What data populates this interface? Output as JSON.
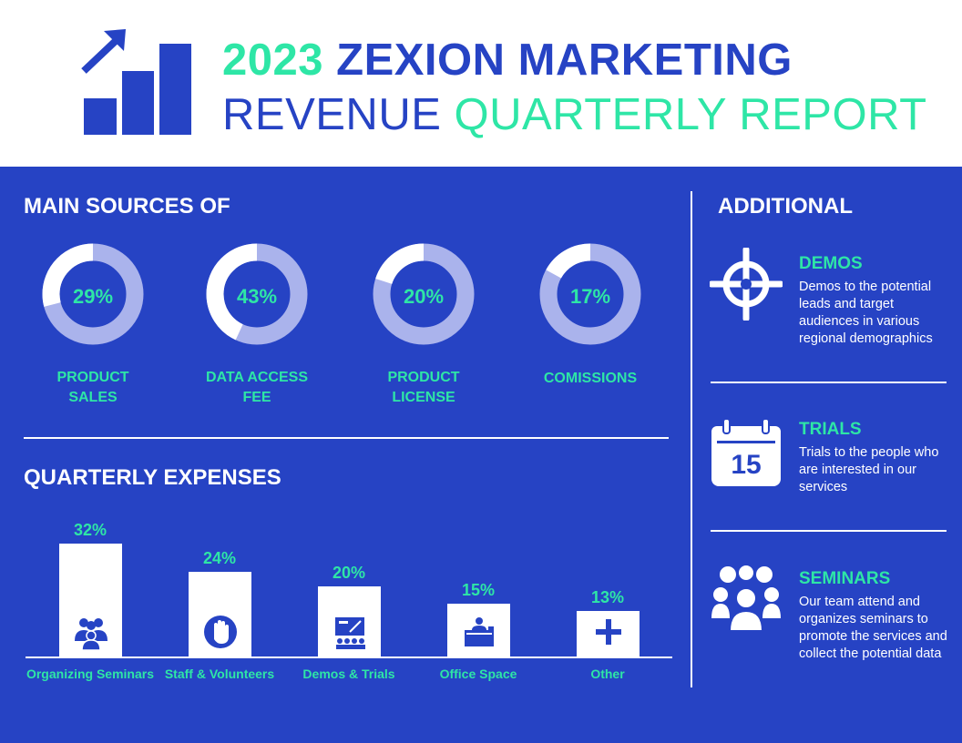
{
  "header": {
    "title_year": "2023",
    "title_company": "ZEXION MARKETING",
    "title_revenue": "REVENUE",
    "title_report": "QUARTERLY REPORT",
    "logo_icon": "bar-chart-growth-icon"
  },
  "colors": {
    "background": "#2643c4",
    "accent": "#2ee6a6",
    "donut_ring": "#aab3ec",
    "white": "#ffffff"
  },
  "sources": {
    "title": "MAIN SOURCES OF",
    "items": [
      {
        "percent_label": "29%",
        "label_line1": "PRODUCT",
        "label_line2": "SALES"
      },
      {
        "percent_label": "43%",
        "label_line1": "DATA ACCESS",
        "label_line2": "FEE"
      },
      {
        "percent_label": "20%",
        "label_line1": "PRODUCT",
        "label_line2": "LICENSE"
      },
      {
        "percent_label": "17%",
        "label_line1": "COMISSIONS",
        "label_line2": ""
      }
    ]
  },
  "expenses": {
    "title": "QUARTERLY EXPENSES",
    "items": [
      {
        "value_label": "32%",
        "category": "Organizing Seminars",
        "icon": "people-group-icon"
      },
      {
        "value_label": "24%",
        "category": "Staff & Volunteers",
        "icon": "raised-hand-icon"
      },
      {
        "value_label": "20%",
        "category": "Demos & Trials",
        "icon": "presentation-icon"
      },
      {
        "value_label": "15%",
        "category": "Office Space",
        "icon": "office-desk-icon"
      },
      {
        "value_label": "13%",
        "category": "Other",
        "icon": "plus-icon"
      }
    ]
  },
  "additional": {
    "title": "ADDITIONAL",
    "items": [
      {
        "title": "DEMOS",
        "text": "Demos to the potential leads and target audiences in various regional demographics",
        "icon": "target-crosshair-icon"
      },
      {
        "title": "TRIALS",
        "text": "Trials to the people who are interested in our services",
        "icon": "calendar-icon",
        "icon_number": "15"
      },
      {
        "title": "SEMINARS",
        "text": "Our team attend and organizes seminars to promote the services and collect the potential data",
        "icon": "group-people-icon"
      }
    ]
  },
  "chart_data": [
    {
      "type": "pie",
      "title": "MAIN SOURCES OF",
      "categories": [
        "PRODUCT SALES",
        "DATA ACCESS FEE",
        "PRODUCT LICENSE",
        "COMISSIONS"
      ],
      "values": [
        29,
        43,
        20,
        17
      ],
      "unit": "%"
    },
    {
      "type": "bar",
      "title": "QUARTERLY EXPENSES",
      "categories": [
        "Organizing Seminars",
        "Staff & Volunteers",
        "Demos & Trials",
        "Office Space",
        "Other"
      ],
      "values": [
        32,
        24,
        20,
        15,
        13
      ],
      "unit": "%",
      "ylim": [
        0,
        32
      ]
    }
  ]
}
